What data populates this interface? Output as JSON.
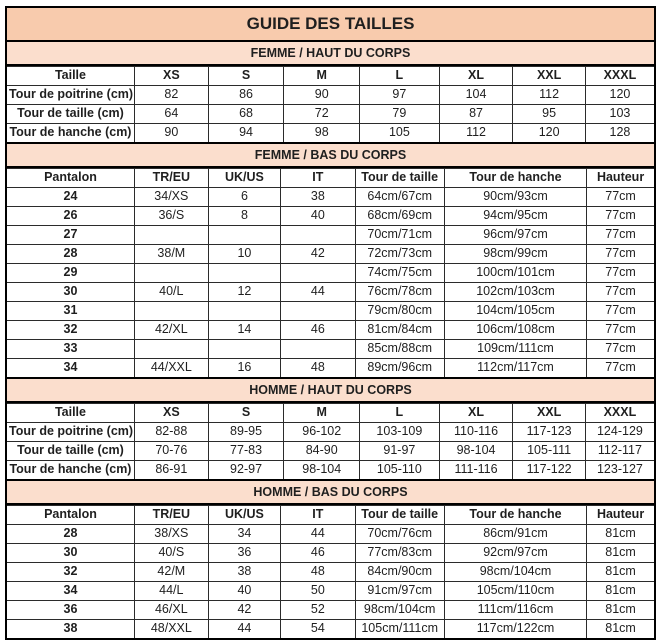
{
  "title": "GUIDE DES TAILLES",
  "colors": {
    "title_bg": "#F8CBAD",
    "section_heading_bg": "#FBDECD",
    "border": "#000000",
    "text": "#1f1f1f"
  },
  "sections": [
    {
      "id": "femme-haut",
      "heading": "FEMME / HAUT DU CORPS",
      "col_widths": [
        "19.7%",
        "11.4%",
        "11.7%",
        "11.7%",
        "12.3%",
        "11.4%",
        "11.2%",
        "10.6%"
      ],
      "header": [
        "Taille",
        "XS",
        "S",
        "M",
        "L",
        "XL",
        "XXL",
        "XXXL"
      ],
      "rows": [
        [
          "Tour de poitrine (cm)",
          "82",
          "86",
          "90",
          "97",
          "104",
          "112",
          "120"
        ],
        [
          "Tour de taille (cm)",
          "64",
          "68",
          "72",
          "79",
          "87",
          "95",
          "103"
        ],
        [
          "Tour de hanche (cm)",
          "90",
          "94",
          "98",
          "105",
          "112",
          "120",
          "128"
        ]
      ]
    },
    {
      "id": "femme-bas",
      "heading": "FEMME / BAS DU CORPS",
      "col_widths": [
        "19.7%",
        "11.4%",
        "11.2%",
        "11.5%",
        "13.8%",
        "22.0%",
        "10.4%"
      ],
      "header": [
        "Pantalon",
        "TR/EU",
        "UK/US",
        "IT",
        "Tour de taille",
        "Tour de hanche",
        "Hauteur"
      ],
      "rows": [
        [
          "24",
          "34/XS",
          "6",
          "38",
          "64cm/67cm",
          "90cm/93cm",
          "77cm"
        ],
        [
          "26",
          "36/S",
          "8",
          "40",
          "68cm/69cm",
          "94cm/95cm",
          "77cm"
        ],
        [
          "27",
          "",
          "",
          "",
          "70cm/71cm",
          "96cm/97cm",
          "77cm"
        ],
        [
          "28",
          "38/M",
          "10",
          "42",
          "72cm/73cm",
          "98cm/99cm",
          "77cm"
        ],
        [
          "29",
          "",
          "",
          "",
          "74cm/75cm",
          "100cm/101cm",
          "77cm"
        ],
        [
          "30",
          "40/L",
          "12",
          "44",
          "76cm/78cm",
          "102cm/103cm",
          "77cm"
        ],
        [
          "31",
          "",
          "",
          "",
          "79cm/80cm",
          "104cm/105cm",
          "77cm"
        ],
        [
          "32",
          "42/XL",
          "14",
          "46",
          "81cm/84cm",
          "106cm/108cm",
          "77cm"
        ],
        [
          "33",
          "",
          "",
          "",
          "85cm/88cm",
          "109cm/111cm",
          "77cm"
        ],
        [
          "34",
          "44/XXL",
          "16",
          "48",
          "89cm/96cm",
          "112cm/117cm",
          "77cm"
        ]
      ]
    },
    {
      "id": "homme-haut",
      "heading": "HOMME / HAUT DU CORPS",
      "col_widths": [
        "19.7%",
        "11.4%",
        "11.7%",
        "11.7%",
        "12.3%",
        "11.4%",
        "11.2%",
        "10.6%"
      ],
      "header": [
        "Taille",
        "XS",
        "S",
        "M",
        "L",
        "XL",
        "XXL",
        "XXXL"
      ],
      "rows": [
        [
          "Tour de poitrine (cm)",
          "82-88",
          "89-95",
          "96-102",
          "103-109",
          "110-116",
          "117-123",
          "124-129"
        ],
        [
          "Tour de taille (cm)",
          "70-76",
          "77-83",
          "84-90",
          "91-97",
          "98-104",
          "105-111",
          "112-117"
        ],
        [
          "Tour de hanche (cm)",
          "86-91",
          "92-97",
          "98-104",
          "105-110",
          "111-116",
          "117-122",
          "123-127"
        ]
      ]
    },
    {
      "id": "homme-bas",
      "heading": "HOMME / BAS DU CORPS",
      "col_widths": [
        "19.7%",
        "11.4%",
        "11.2%",
        "11.5%",
        "13.8%",
        "22.0%",
        "10.4%"
      ],
      "header": [
        "Pantalon",
        "TR/EU",
        "UK/US",
        "IT",
        "Tour de taille",
        "Tour de hanche",
        "Hauteur"
      ],
      "rows": [
        [
          "28",
          "38/XS",
          "34",
          "44",
          "70cm/76cm",
          "86cm/91cm",
          "81cm"
        ],
        [
          "30",
          "40/S",
          "36",
          "46",
          "77cm/83cm",
          "92cm/97cm",
          "81cm"
        ],
        [
          "32",
          "42/M",
          "38",
          "48",
          "84cm/90cm",
          "98cm/104cm",
          "81cm"
        ],
        [
          "34",
          "44/L",
          "40",
          "50",
          "91cm/97cm",
          "105cm/110cm",
          "81cm"
        ],
        [
          "36",
          "46/XL",
          "42",
          "52",
          "98cm/104cm",
          "111cm/116cm",
          "81cm"
        ],
        [
          "38",
          "48/XXL",
          "44",
          "54",
          "105cm/111cm",
          "117cm/122cm",
          "81cm"
        ]
      ]
    }
  ]
}
